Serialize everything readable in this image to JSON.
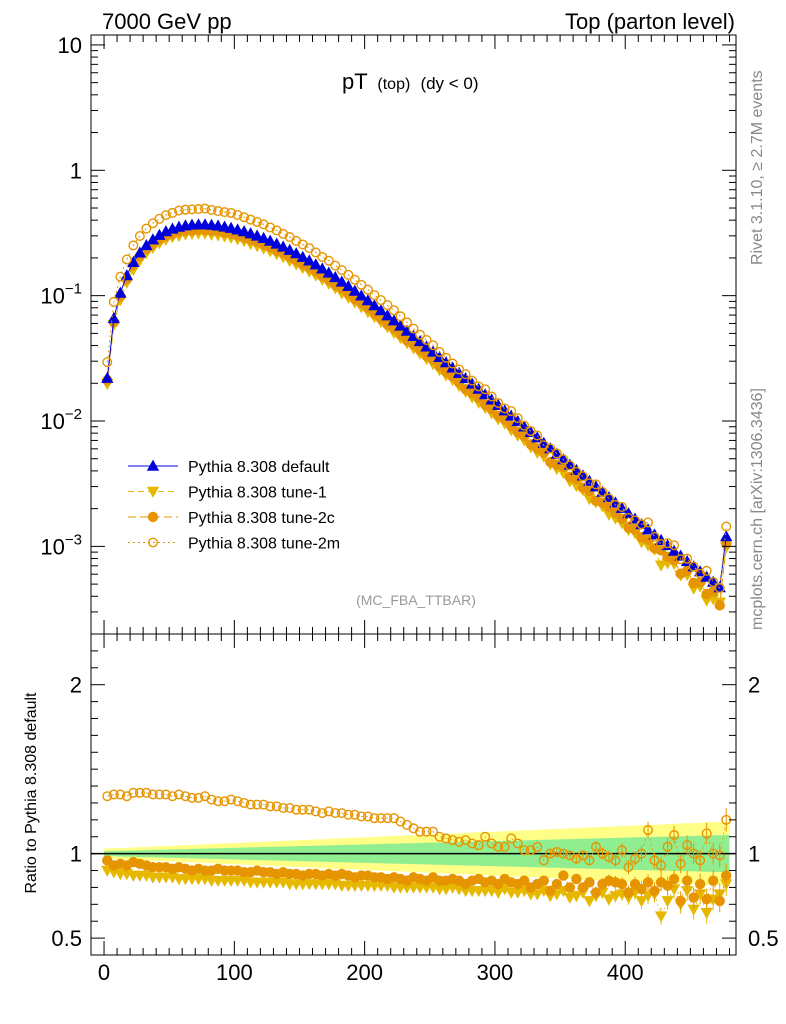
{
  "header": {
    "left": "7000 GeV pp",
    "right": "Top (parton level)"
  },
  "title": {
    "main": "pT",
    "sub": "(top)",
    "cut": "(dy < 0)"
  },
  "watermark": "(MC_FBA_TTBAR)",
  "side_text": {
    "rivet": "Rivet 3.1.10, ≥ 2.7M events",
    "mcplots": "mcplots.cern.ch [arXiv:1306.3436]"
  },
  "ratio_ylabel": "Ratio to Pythia 8.308 default",
  "colors": {
    "default": "#0000dd",
    "tune1": "#e6b800",
    "tune2c": "#e69500",
    "tune2m": "#e69500",
    "band_green": "#90ee90",
    "band_yellow": "#ffff88"
  },
  "chart_data": {
    "type": "scatter",
    "main": {
      "y_scale": "log",
      "ylim": [
        0.0002,
        12
      ],
      "ytick_labels": [
        "10",
        "1",
        "10^-1",
        "10^-2",
        "10^-3"
      ]
    },
    "ratio": {
      "ylim": [
        0.4,
        2.3
      ],
      "ytick_labels": [
        "2",
        "1",
        "0.5"
      ]
    },
    "xlim": [
      -10,
      485
    ],
    "xtick_labels": [
      "0",
      "100",
      "200",
      "300",
      "400"
    ],
    "legend": {
      "position": "lower-left",
      "entries": [
        "Pythia 8.308 default",
        "Pythia 8.308 tune-1",
        "Pythia 8.308 tune-2c",
        "Pythia 8.308 tune-2m"
      ]
    },
    "bin_width": 5,
    "x": [
      2.5,
      7.5,
      12.5,
      17.5,
      22.5,
      27.5,
      32.5,
      37.5,
      42.5,
      47.5,
      52.5,
      57.5,
      62.5,
      67.5,
      72.5,
      77.5,
      82.5,
      87.5,
      92.5,
      97.5,
      102.5,
      107.5,
      112.5,
      117.5,
      122.5,
      127.5,
      132.5,
      137.5,
      142.5,
      147.5,
      152.5,
      157.5,
      162.5,
      167.5,
      172.5,
      177.5,
      182.5,
      187.5,
      192.5,
      197.5,
      202.5,
      207.5,
      212.5,
      217.5,
      222.5,
      227.5,
      232.5,
      237.5,
      242.5,
      247.5,
      252.5,
      257.5,
      262.5,
      267.5,
      272.5,
      277.5,
      282.5,
      287.5,
      292.5,
      297.5,
      302.5,
      307.5,
      312.5,
      317.5,
      322.5,
      327.5,
      332.5,
      337.5,
      342.5,
      347.5,
      352.5,
      357.5,
      362.5,
      367.5,
      372.5,
      377.5,
      382.5,
      387.5,
      392.5,
      397.5,
      402.5,
      407.5,
      412.5,
      417.5,
      422.5,
      427.5,
      432.5,
      437.5,
      442.5,
      447.5,
      452.5,
      457.5,
      462.5,
      467.5,
      472.5,
      477.5
    ],
    "series": [
      {
        "name": "Pythia 8.308 default",
        "marker": "triangle-up",
        "values": [
          0.022,
          0.066,
          0.105,
          0.145,
          0.185,
          0.22,
          0.252,
          0.28,
          0.304,
          0.325,
          0.341,
          0.353,
          0.362,
          0.367,
          0.369,
          0.369,
          0.366,
          0.361,
          0.354,
          0.346,
          0.336,
          0.325,
          0.313,
          0.3,
          0.287,
          0.273,
          0.259,
          0.245,
          0.231,
          0.217,
          0.203,
          0.19,
          0.177,
          0.164,
          0.152,
          0.14,
          0.129,
          0.119,
          0.109,
          0.1,
          0.0915,
          0.0835,
          0.0762,
          0.0694,
          0.0632,
          0.0575,
          0.0523,
          0.0475,
          0.0432,
          0.0392,
          0.0356,
          0.0323,
          0.0293,
          0.0266,
          0.0241,
          0.0219,
          0.0198,
          0.018,
          0.0163,
          0.0148,
          0.0134,
          0.0121,
          0.011,
          0.00995,
          0.009,
          0.00815,
          0.00737,
          0.00667,
          0.00604,
          0.00546,
          0.00494,
          0.00447,
          0.00405,
          0.00366,
          0.00332,
          0.003,
          0.00272,
          0.00246,
          0.00223,
          0.00202,
          0.00183,
          0.00166,
          0.0015,
          0.00136,
          0.00124,
          0.00112,
          0.00102,
          0.00092,
          0.00084,
          0.00076,
          0.00069,
          0.00063,
          0.00057,
          0.00052,
          0.00047,
          0.0012
        ]
      },
      {
        "name": "Pythia 8.308 tune-1",
        "marker": "triangle-down",
        "ratio": [
          0.9,
          0.89,
          0.88,
          0.88,
          0.87,
          0.87,
          0.87,
          0.86,
          0.86,
          0.86,
          0.86,
          0.85,
          0.85,
          0.85,
          0.85,
          0.85,
          0.84,
          0.84,
          0.84,
          0.84,
          0.84,
          0.84,
          0.83,
          0.83,
          0.83,
          0.83,
          0.83,
          0.83,
          0.82,
          0.82,
          0.82,
          0.82,
          0.82,
          0.82,
          0.82,
          0.82,
          0.81,
          0.81,
          0.81,
          0.81,
          0.81,
          0.81,
          0.81,
          0.81,
          0.8,
          0.8,
          0.8,
          0.8,
          0.8,
          0.8,
          0.8,
          0.79,
          0.79,
          0.8,
          0.79,
          0.78,
          0.78,
          0.78,
          0.78,
          0.78,
          0.77,
          0.79,
          0.77,
          0.77,
          0.78,
          0.76,
          0.76,
          0.78,
          0.75,
          0.76,
          0.78,
          0.74,
          0.75,
          0.77,
          0.72,
          0.75,
          0.77,
          0.73,
          0.75,
          0.76,
          0.74,
          0.77,
          0.72,
          0.75,
          0.76,
          0.63,
          0.72,
          0.79,
          0.7,
          0.78,
          0.67,
          0.76,
          0.65,
          0.73,
          0.76,
          0.82
        ]
      },
      {
        "name": "Pythia 8.308 tune-2c",
        "marker": "circle-filled",
        "ratio": [
          0.96,
          0.93,
          0.94,
          0.93,
          0.95,
          0.94,
          0.93,
          0.92,
          0.92,
          0.92,
          0.91,
          0.92,
          0.91,
          0.9,
          0.91,
          0.9,
          0.9,
          0.91,
          0.9,
          0.9,
          0.9,
          0.89,
          0.89,
          0.9,
          0.89,
          0.89,
          0.88,
          0.89,
          0.88,
          0.88,
          0.87,
          0.88,
          0.88,
          0.87,
          0.88,
          0.87,
          0.88,
          0.87,
          0.86,
          0.87,
          0.87,
          0.86,
          0.86,
          0.85,
          0.86,
          0.85,
          0.84,
          0.86,
          0.85,
          0.84,
          0.86,
          0.84,
          0.84,
          0.85,
          0.84,
          0.82,
          0.84,
          0.85,
          0.83,
          0.84,
          0.82,
          0.85,
          0.83,
          0.82,
          0.84,
          0.8,
          0.82,
          0.84,
          0.78,
          0.82,
          0.87,
          0.8,
          0.85,
          0.8,
          0.83,
          0.77,
          0.82,
          0.84,
          0.83,
          0.82,
          0.77,
          0.82,
          0.79,
          0.83,
          0.78,
          0.83,
          0.81,
          0.85,
          0.72,
          0.84,
          0.74,
          0.82,
          0.73,
          0.84,
          0.72,
          0.87
        ]
      },
      {
        "name": "Pythia 8.308 tune-2m",
        "marker": "circle-open",
        "ratio": [
          1.34,
          1.35,
          1.35,
          1.34,
          1.36,
          1.36,
          1.36,
          1.35,
          1.35,
          1.35,
          1.34,
          1.35,
          1.34,
          1.33,
          1.33,
          1.34,
          1.32,
          1.31,
          1.31,
          1.32,
          1.31,
          1.3,
          1.29,
          1.29,
          1.29,
          1.28,
          1.28,
          1.27,
          1.27,
          1.26,
          1.26,
          1.26,
          1.25,
          1.24,
          1.25,
          1.24,
          1.24,
          1.23,
          1.23,
          1.22,
          1.22,
          1.21,
          1.21,
          1.21,
          1.21,
          1.19,
          1.17,
          1.15,
          1.13,
          1.13,
          1.13,
          1.1,
          1.09,
          1.08,
          1.07,
          1.08,
          1.06,
          1.05,
          1.1,
          1.06,
          1.04,
          1.04,
          1.09,
          1.06,
          1.02,
          1.02,
          1.04,
          0.96,
          1.0,
          1.01,
          1.0,
          0.99,
          0.97,
          0.99,
          0.96,
          1.04,
          1.0,
          0.98,
          0.96,
          1.02,
          0.92,
          0.97,
          1.0,
          1.14,
          0.96,
          0.93,
          1.04,
          1.11,
          0.94,
          1.05,
          1.0,
          0.96,
          1.12,
          1.0,
          0.99,
          1.2
        ]
      }
    ],
    "band": {
      "green_halfwidth_start": 0.015,
      "green_halfwidth_end": 0.11,
      "yellow_halfwidth_start": 0.03,
      "yellow_halfwidth_end": 0.19
    }
  }
}
